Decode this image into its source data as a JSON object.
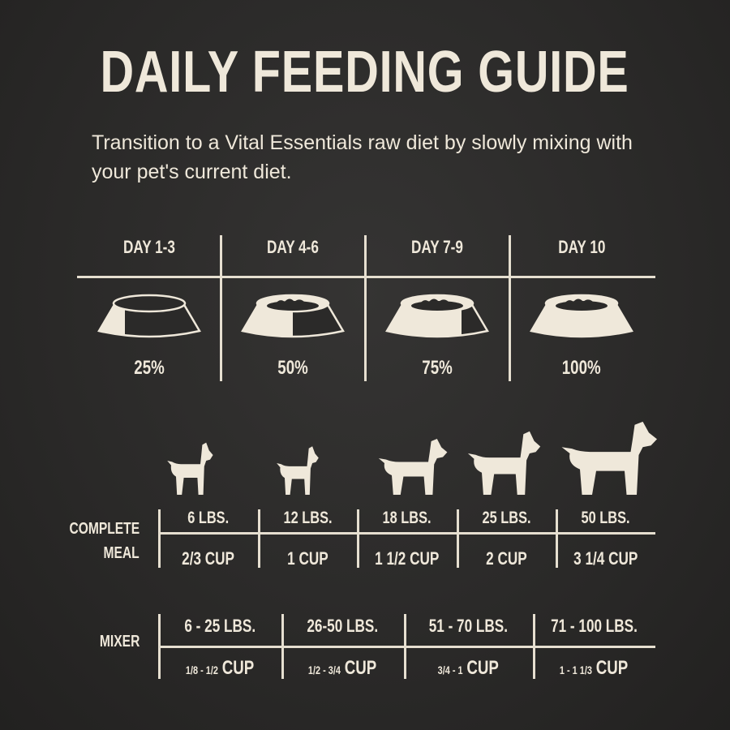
{
  "title": "DAILY FEEDING GUIDE",
  "subtitle": "Transition to a Vital Essentials raw diet by slowly mixing with your pet's current diet.",
  "colors": {
    "background": "#2b2a29",
    "foreground": "#efe8da"
  },
  "transition": [
    {
      "day": "DAY 1-3",
      "percent": "25%",
      "fill": 0.25
    },
    {
      "day": "DAY 4-6",
      "percent": "50%",
      "fill": 0.5
    },
    {
      "day": "DAY 7-9",
      "percent": "75%",
      "fill": 0.75
    },
    {
      "day": "DAY 10",
      "percent": "100%",
      "fill": 1
    }
  ],
  "dogs": [
    "toy-dog-icon",
    "poodle-icon",
    "pug-icon",
    "shiba-dog-icon",
    "large-dog-icon"
  ],
  "complete_meal": {
    "label_line1": "COMPLETE",
    "label_line2": "MEAL",
    "rows": [
      {
        "weight": "6 LBS.",
        "amount": "2/3 CUP"
      },
      {
        "weight": "12 LBS.",
        "amount": "1 CUP"
      },
      {
        "weight": "18 LBS.",
        "amount": "1 1/2 CUP"
      },
      {
        "weight": "25 LBS.",
        "amount": "2 CUP"
      },
      {
        "weight": "50 LBS.",
        "amount": "3 1/4 CUP"
      }
    ]
  },
  "mixer": {
    "label": "MIXER",
    "rows": [
      {
        "weight": "6 - 25 LBS.",
        "amount": "1/8 - 1/2",
        "unit": "CUP"
      },
      {
        "weight": "26-50 LBS.",
        "amount": "1/2 - 3/4",
        "unit": "CUP"
      },
      {
        "weight": "51 - 70 LBS.",
        "amount": "3/4 - 1",
        "unit": "CUP"
      },
      {
        "weight": "71 - 100 LBS.",
        "amount": "1 - 1 1/3",
        "unit": "CUP"
      }
    ]
  }
}
